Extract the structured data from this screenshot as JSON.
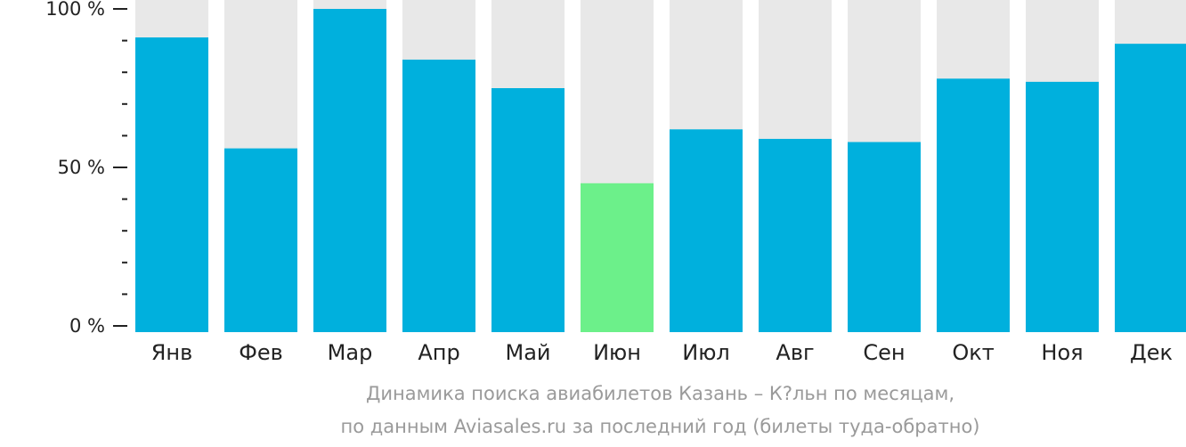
{
  "chart_data": {
    "type": "bar",
    "categories": [
      "Янв",
      "Фев",
      "Мар",
      "Апр",
      "Май",
      "Июн",
      "Июл",
      "Авг",
      "Сен",
      "Окт",
      "Ноя",
      "Дек"
    ],
    "values": [
      91,
      56,
      100,
      84,
      75,
      45,
      62,
      59,
      58,
      78,
      77,
      89
    ],
    "ylim": [
      0,
      100
    ],
    "yticks": [
      "0 %",
      "50 %",
      "100 %"
    ],
    "highlight_index": 5,
    "background_bar": true,
    "colors": {
      "bar": "#00b0dd",
      "highlight": "#6cf08a",
      "track": "#e8e8e8",
      "axis": "#222222"
    }
  },
  "caption": {
    "line1": "Динамика поиска авиабилетов Казань – К?льн по месяцам,",
    "line2": "по данным Aviasales.ru за последний год (билеты туда-обратно)"
  }
}
